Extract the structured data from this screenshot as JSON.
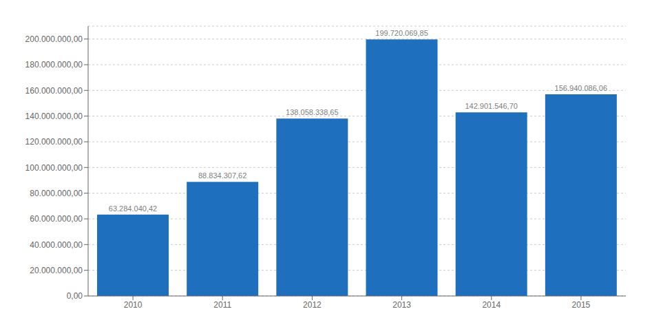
{
  "chart_data": {
    "type": "bar",
    "categories": [
      "2010",
      "2011",
      "2012",
      "2013",
      "2014",
      "2015"
    ],
    "values": [
      63284040.42,
      88834307.62,
      138058338.65,
      199720069.85,
      142901546.7,
      156940086.06
    ],
    "value_labels": [
      "63.284.040,42",
      "88.834.307,62",
      "138.058.338,65",
      "199.720.069,85",
      "142.901.546,70",
      "156.940.086,06"
    ],
    "color": "#1F6FBF",
    "ylim": [
      0,
      210000000
    ],
    "yticks": [
      {
        "value": 0,
        "label": "0,00"
      },
      {
        "value": 20000000,
        "label": "20.000.000,00"
      },
      {
        "value": 40000000,
        "label": "40.000.000,00"
      },
      {
        "value": 60000000,
        "label": "60.000.000,00"
      },
      {
        "value": 80000000,
        "label": "80.000.000,00"
      },
      {
        "value": 100000000,
        "label": "100.000.000,00"
      },
      {
        "value": 120000000,
        "label": "120.000.000,00"
      },
      {
        "value": 140000000,
        "label": "140.000.000,00"
      },
      {
        "value": 160000000,
        "label": "160.000.000,00"
      },
      {
        "value": 180000000,
        "label": "180.000.000,00"
      },
      {
        "value": 200000000,
        "label": "200.000.000,00"
      }
    ],
    "grid": true,
    "data_labels": true
  }
}
